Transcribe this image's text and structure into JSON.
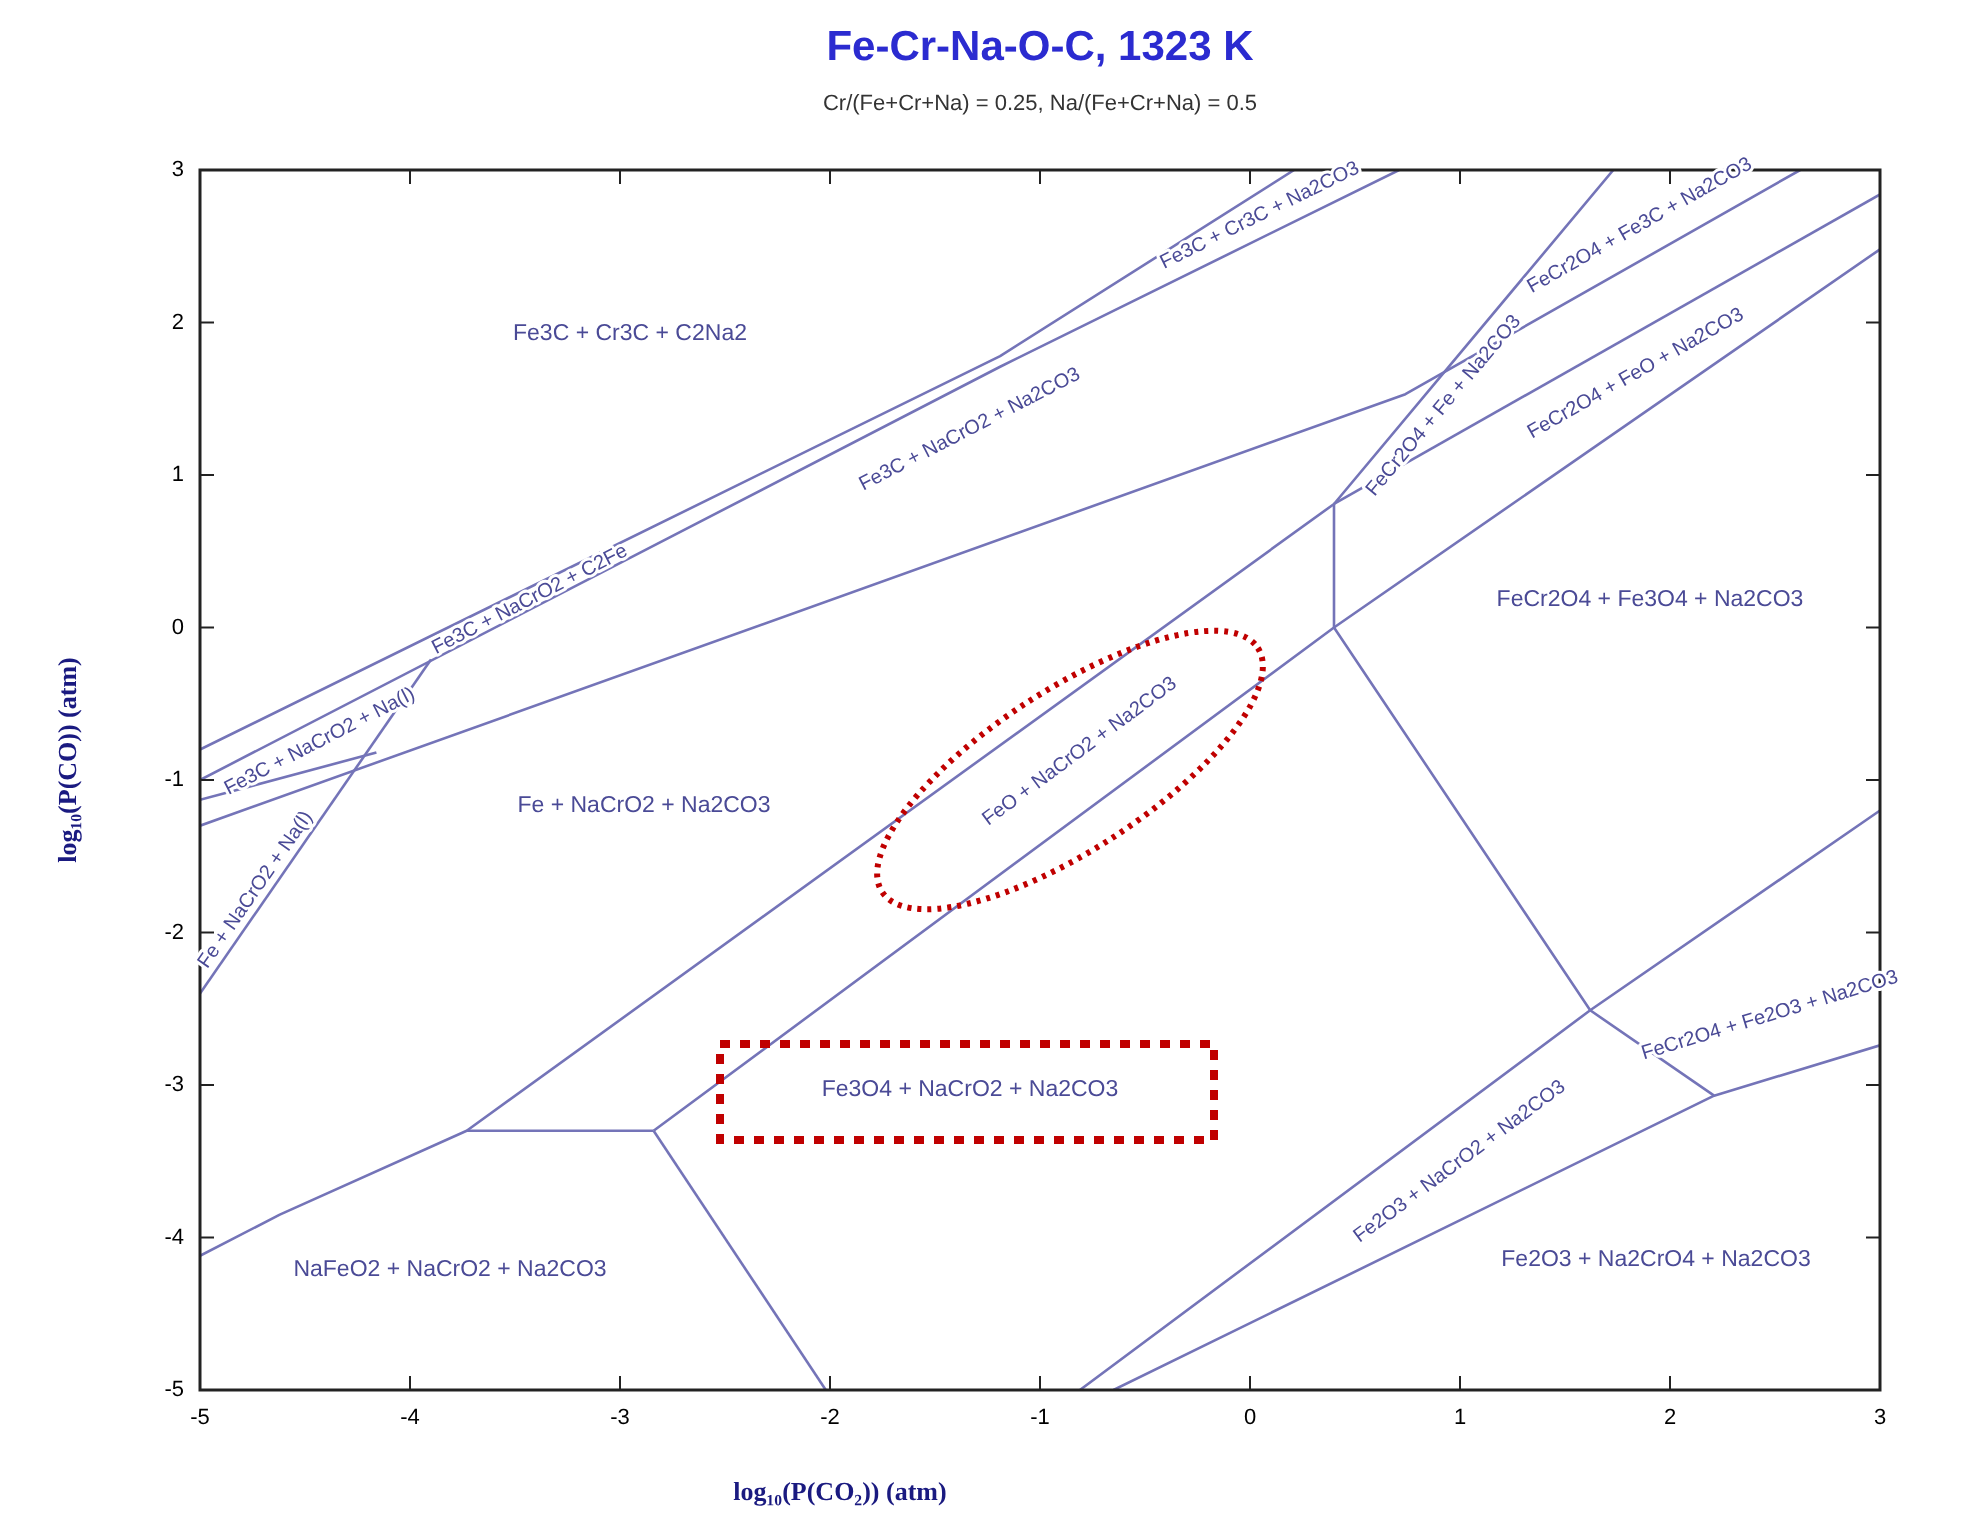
{
  "chart_data": {
    "type": "line",
    "title": "Fe-Cr-Na-O-C, 1323 K",
    "subtitle": "Cr/(Fe+Cr+Na) = 0.25,  Na/(Fe+Cr+Na) = 0.5",
    "xlabel": "log₁₀(P(CO₂)) (atm)",
    "ylabel": "log₁₀(P(CO)) (atm)",
    "xlim": [
      -5,
      3
    ],
    "ylim": [
      -5,
      3
    ],
    "xticks": [
      -5,
      -4,
      -3,
      -2,
      -1,
      0,
      1,
      2,
      3
    ],
    "yticks": [
      -5,
      -4,
      -3,
      -2,
      -1,
      0,
      1,
      2,
      3
    ],
    "series": [
      {
        "color": "#7474b8",
        "x": [
          -5,
          -1.19,
          0.21
        ],
        "values": [
          -0.8,
          1.78,
          3
        ]
      },
      {
        "color": "#7474b8",
        "x": [
          -5,
          -1.19,
          0.71
        ],
        "values": [
          -1.0,
          1.71,
          3
        ]
      },
      {
        "color": "#7474b8",
        "x": [
          -5,
          0.74,
          2.62
        ],
        "values": [
          -1.3,
          1.53,
          3
        ]
      },
      {
        "color": "#7474b8",
        "x": [
          -5,
          -4.16
        ],
        "values": [
          -1.13,
          -0.82
        ]
      },
      {
        "color": "#7474b8",
        "x": [
          -5,
          -3.9
        ],
        "values": [
          -2.4,
          -0.21
        ]
      },
      {
        "color": "#7474b8",
        "x": [
          0.4,
          3
        ],
        "values": [
          0.81,
          2.84
        ]
      },
      {
        "color": "#7474b8",
        "x": [
          -2.84,
          0.4,
          3
        ],
        "values": [
          -3.3,
          0.0,
          2.48
        ]
      },
      {
        "color": "#7474b8",
        "x": [
          0.4,
          0.4
        ],
        "values": [
          0.81,
          0.0
        ]
      },
      {
        "color": "#7474b8",
        "x": [
          -3.73,
          -2.84
        ],
        "values": [
          -3.3,
          -3.3
        ]
      },
      {
        "color": "#7474b8",
        "x": [
          -5,
          -4.62,
          -3.73,
          0.4,
          1.73
        ],
        "values": [
          -4.12,
          -3.85,
          -3.3,
          0.81,
          3
        ]
      },
      {
        "color": "#7474b8",
        "x": [
          -2.84,
          -2.02
        ],
        "values": [
          -3.3,
          -5
        ]
      },
      {
        "color": "#7474b8",
        "x": [
          0.4,
          1.62,
          2.21
        ],
        "values": [
          0.0,
          -2.51,
          -3.07
        ]
      },
      {
        "color": "#7474b8",
        "x": [
          -0.81,
          1.62,
          3
        ],
        "values": [
          -5,
          -2.51,
          -1.2
        ]
      },
      {
        "color": "#7474b8",
        "x": [
          -0.65,
          2.21,
          3
        ],
        "values": [
          -5,
          -3.07,
          -2.74
        ]
      }
    ],
    "annotations": [
      "Fe3C + Cr3C + C2Na2",
      "Fe3C + Cr3C + Na2CO3",
      "Fe3C + NaCrO2 + Na2CO3",
      "Fe3C + NaCrO2 + C2Fe",
      "Fe3C + NaCrO2 + Na(l)",
      "Fe + NaCrO2 + Na(l)",
      "Fe + NaCrO2 + Na2CO3",
      "FeO + NaCrO2 + Na2CO3",
      "Fe3O4 + NaCrO2 + Na2CO3",
      "NaFeO2 + NaCrO2 + Na2CO3",
      "FeCr2O4 + Fe3C + Na2CO3",
      "FeCr2O4 + Fe + Na2CO3",
      "FeCr2O4 + FeO + Na2CO3",
      "FeCr2O4 + Fe3O4 + Na2CO3",
      "FeCr2O4 + Fe2O3 + Na2CO3",
      "Fe2O3 + NaCrO2 + Na2CO3",
      "Fe2O3 + Na2CrO4 + Na2CO3"
    ]
  }
}
